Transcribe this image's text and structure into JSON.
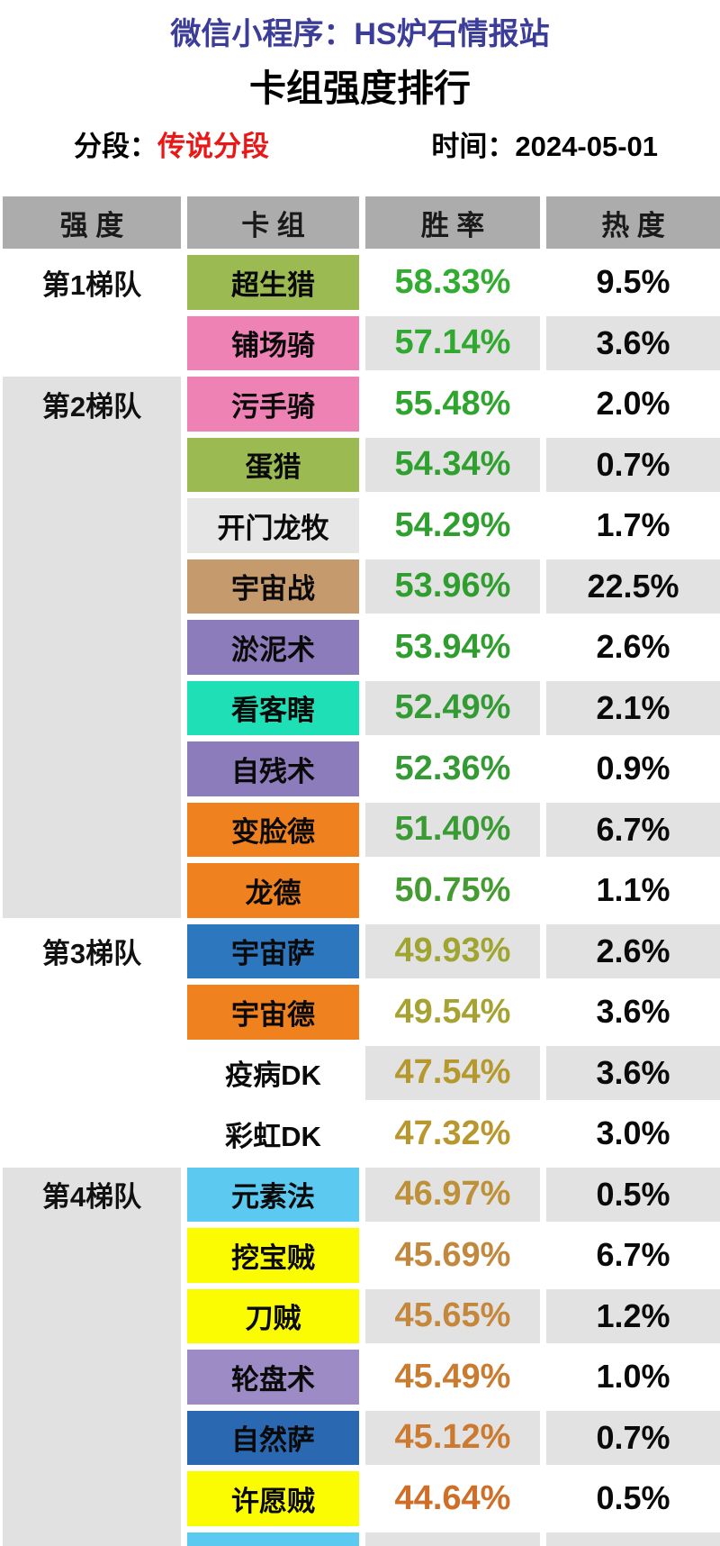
{
  "app": {
    "source_line": "微信小程序：HS炉石情报站",
    "title": "卡组强度排行",
    "segment_label": "分段：",
    "segment_value": "传说分段",
    "time_label": "时间：",
    "time_value": "2024-05-01"
  },
  "colors": {
    "source_line_text": "#3C3C99",
    "segment_value_text": "#E81818",
    "table_header_bg": "#ACACAC",
    "row_alt_bg": "#E2E2E2",
    "tier_shaded_bg": "#E1E1E1",
    "page_bg": "#FFFFFF"
  },
  "table": {
    "headers": [
      "强 度",
      "卡 组",
      "胜 率",
      "热 度"
    ],
    "tiers": [
      {
        "label": "第1梯队",
        "start": 1,
        "rows": 2,
        "shaded": false
      },
      {
        "label": "第2梯队",
        "start": 3,
        "rows": 9,
        "shaded": true
      },
      {
        "label": "第3梯队",
        "start": 12,
        "rows": 4,
        "shaded": false
      },
      {
        "label": "第4梯队",
        "start": 16,
        "rows": 7,
        "shaded": true
      }
    ],
    "rows": [
      {
        "deck": "超生猎",
        "deck_color": "#9BBA52",
        "win": "58.33%",
        "win_color": "#31AC31",
        "heat": "9.5%"
      },
      {
        "deck": "铺场骑",
        "deck_color": "#EF82B5",
        "win": "57.14%",
        "win_color": "#31A931",
        "heat": "3.6%"
      },
      {
        "deck": "污手骑",
        "deck_color": "#EF82B5",
        "win": "55.48%",
        "win_color": "#2FA52F",
        "heat": "2.0%"
      },
      {
        "deck": "蛋猎",
        "deck_color": "#9BBA52",
        "win": "54.34%",
        "win_color": "#2FA02F",
        "heat": "0.7%"
      },
      {
        "deck": "开门龙牧",
        "deck_color": "#E6E6E6",
        "win": "54.29%",
        "win_color": "#2F9F2F",
        "heat": "1.7%"
      },
      {
        "deck": "宇宙战",
        "deck_color": "#C59B6D",
        "win": "53.96%",
        "win_color": "#2F9E2F",
        "heat": "22.5%"
      },
      {
        "deck": "淤泥术",
        "deck_color": "#8D7CBB",
        "win": "53.94%",
        "win_color": "#2F9E2F",
        "heat": "2.6%"
      },
      {
        "deck": "看客瞎",
        "deck_color": "#1FDFB6",
        "win": "52.49%",
        "win_color": "#339B33",
        "heat": "2.1%"
      },
      {
        "deck": "自残术",
        "deck_color": "#8D7CBB",
        "win": "52.36%",
        "win_color": "#349A34",
        "heat": "0.9%"
      },
      {
        "deck": "变脸德",
        "deck_color": "#F0811F",
        "win": "51.40%",
        "win_color": "#3A9A33",
        "heat": "6.7%"
      },
      {
        "deck": "龙德",
        "deck_color": "#F0811F",
        "win": "50.75%",
        "win_color": "#449B31",
        "heat": "1.1%"
      },
      {
        "deck": "宇宙萨",
        "deck_color": "#2C77BD",
        "win": "49.93%",
        "win_color": "#9FA530",
        "heat": "2.6%"
      },
      {
        "deck": "宇宙德",
        "deck_color": "#F0811F",
        "win": "49.54%",
        "win_color": "#A6A233",
        "heat": "3.6%"
      },
      {
        "deck": "疫病DK",
        "deck_color": "#FFFFFF",
        "win": "47.54%",
        "win_color": "#B5992E",
        "heat": "3.6%"
      },
      {
        "deck": "彩虹DK",
        "deck_color": "#FFFFFF",
        "win": "47.32%",
        "win_color": "#B8972E",
        "heat": "3.0%"
      },
      {
        "deck": "元素法",
        "deck_color": "#5BC9F0",
        "win": "46.97%",
        "win_color": "#BE9038",
        "heat": "0.5%"
      },
      {
        "deck": "挖宝贼",
        "deck_color": "#FBFB02",
        "win": "45.69%",
        "win_color": "#C2883D",
        "heat": "6.7%"
      },
      {
        "deck": "刀贼",
        "deck_color": "#FBFB02",
        "win": "45.65%",
        "win_color": "#C4873C",
        "heat": "1.2%"
      },
      {
        "deck": "轮盘术",
        "deck_color": "#9C8BC4",
        "win": "45.49%",
        "win_color": "#C97C30",
        "heat": "1.0%"
      },
      {
        "deck": "自然萨",
        "deck_color": "#2A69B1",
        "win": "45.12%",
        "win_color": "#CB7A2F",
        "heat": "0.7%"
      },
      {
        "deck": "许愿贼",
        "deck_color": "#FBFB02",
        "win": "44.64%",
        "win_color": "#D06E27",
        "heat": "0.5%"
      },
      {
        "deck": "",
        "deck_color": "#5BC9F0",
        "win": "",
        "win_color": "",
        "heat": ""
      }
    ]
  }
}
